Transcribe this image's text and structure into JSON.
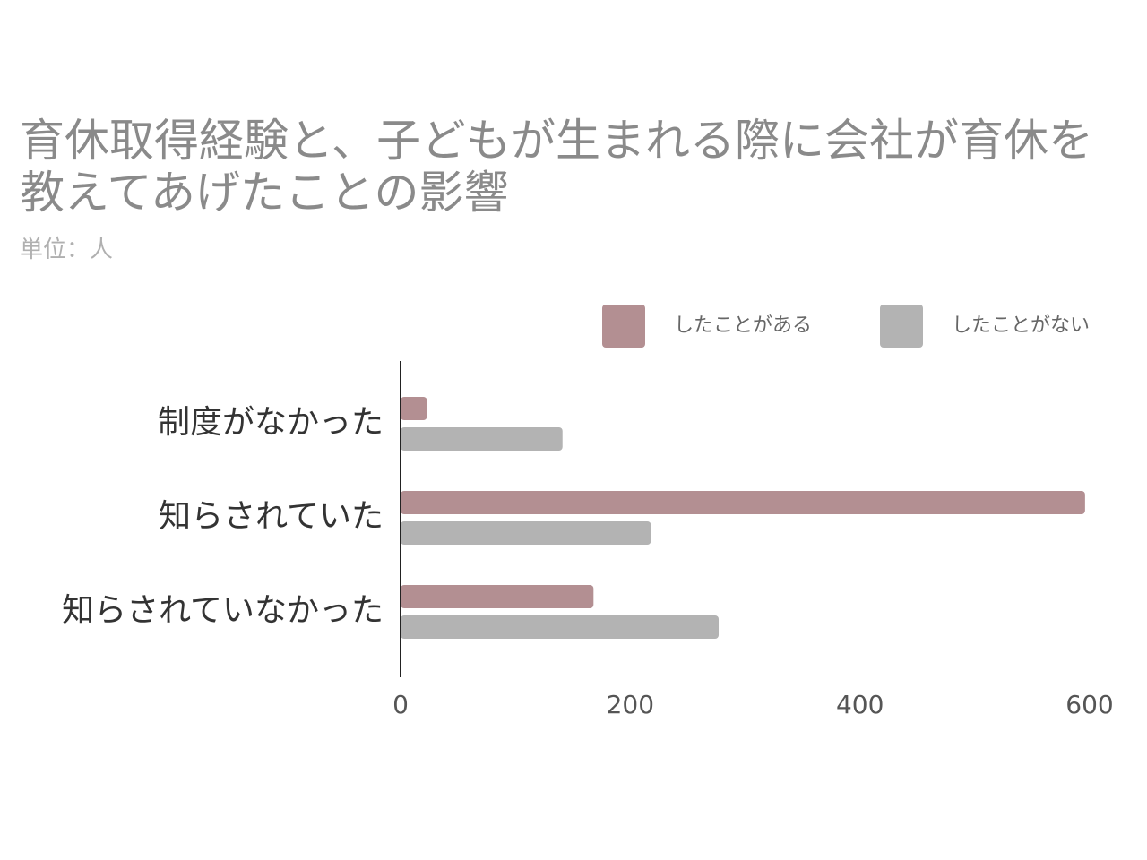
{
  "chart_data": {
    "type": "bar",
    "orientation": "horizontal",
    "title": "育休取得経験と、子どもが生まれる際に会社が育休を教えてあげたことの影響",
    "subtitle": "単位：人",
    "categories": [
      "制度がなかった",
      "知らされていた",
      "知らされていなかった"
    ],
    "series": [
      {
        "name": "したことがある",
        "color": "#b38f92",
        "values": [
          23,
          596,
          168
        ]
      },
      {
        "name": "したことがない",
        "color": "#b3b3b3",
        "values": [
          141,
          218,
          277
        ]
      }
    ],
    "xlim": [
      0,
      600
    ],
    "xticks": [
      0,
      200,
      400,
      600
    ],
    "grid": false
  }
}
